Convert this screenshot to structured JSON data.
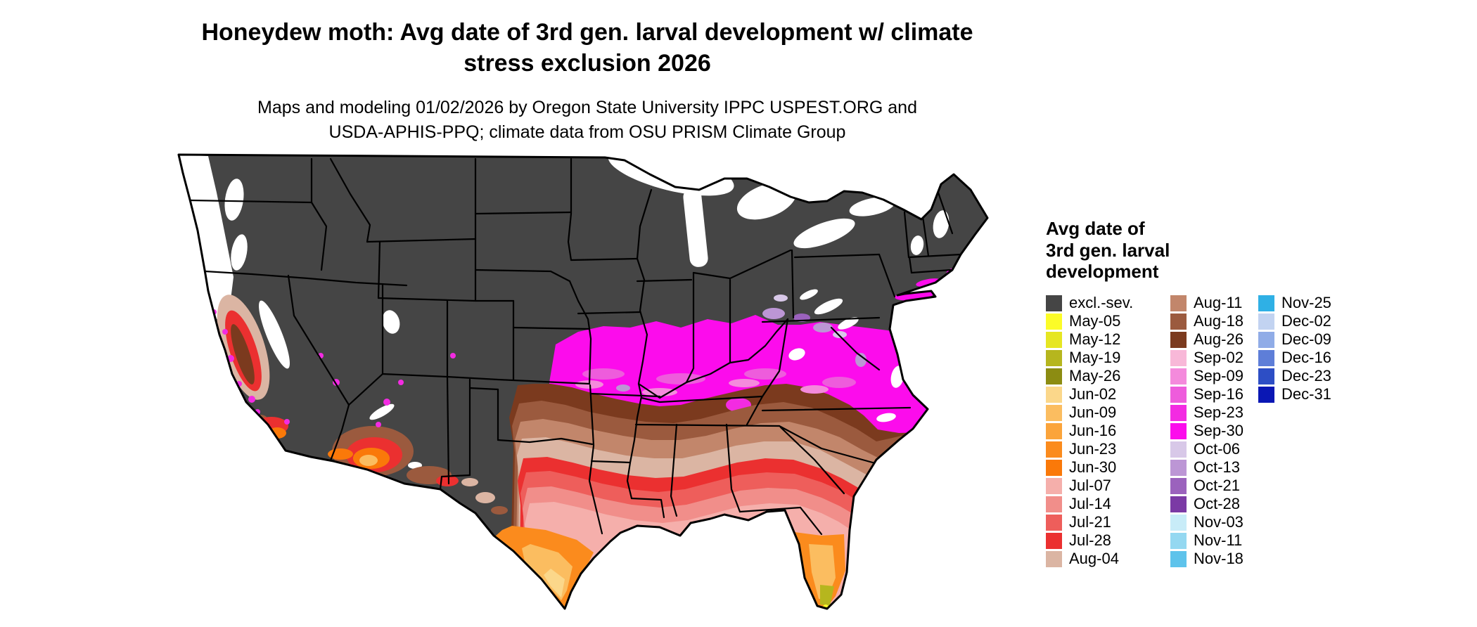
{
  "title": {
    "line1": "Honeydew moth: Avg date of 3rd gen. larval development w/ climate",
    "line2": "stress exclusion 2026"
  },
  "subtitle": {
    "line1": "Maps and modeling 01/02/2026 by Oregon State University IPPC USPEST.ORG and",
    "line2": "USDA-APHIS-PPQ; climate data from OSU PRISM Climate Group"
  },
  "legend": {
    "title_line1": "Avg date of",
    "title_line2": "3rd gen. larval",
    "title_line3": "development",
    "columns": [
      15,
      15,
      6
    ],
    "entries": [
      {
        "label": "excl.-sev.",
        "color": "#454545"
      },
      {
        "label": "May-05",
        "color": "#FCFC28"
      },
      {
        "label": "May-12",
        "color": "#E6E622"
      },
      {
        "label": "May-19",
        "color": "#B6B61E"
      },
      {
        "label": "May-26",
        "color": "#8C8C12"
      },
      {
        "label": "Jun-02",
        "color": "#FBD78A"
      },
      {
        "label": "Jun-09",
        "color": "#FBBD60"
      },
      {
        "label": "Jun-16",
        "color": "#FBA43B"
      },
      {
        "label": "Jun-23",
        "color": "#FB8B1D"
      },
      {
        "label": "Jun-30",
        "color": "#FA7909"
      },
      {
        "label": "Jul-07",
        "color": "#F5AFAB"
      },
      {
        "label": "Jul-14",
        "color": "#F18E8A"
      },
      {
        "label": "Jul-21",
        "color": "#EE5E5B"
      },
      {
        "label": "Jul-28",
        "color": "#EB3030"
      },
      {
        "label": "Aug-04",
        "color": "#DBB5A3"
      },
      {
        "label": "Aug-11",
        "color": "#C2866B"
      },
      {
        "label": "Aug-18",
        "color": "#9B5A3E"
      },
      {
        "label": "Aug-26",
        "color": "#7B3A1E"
      },
      {
        "label": "Sep-02",
        "color": "#F8B8D8"
      },
      {
        "label": "Sep-09",
        "color": "#F48ADC"
      },
      {
        "label": "Sep-16",
        "color": "#EE5CDC"
      },
      {
        "label": "Sep-23",
        "color": "#F32BE2"
      },
      {
        "label": "Sep-30",
        "color": "#FC0CEC"
      },
      {
        "label": "Oct-06",
        "color": "#D8C8E8"
      },
      {
        "label": "Oct-13",
        "color": "#BC96D5"
      },
      {
        "label": "Oct-21",
        "color": "#9B62BD"
      },
      {
        "label": "Oct-28",
        "color": "#7B3AA5"
      },
      {
        "label": "Nov-03",
        "color": "#C8ECF8"
      },
      {
        "label": "Nov-11",
        "color": "#94D8F1"
      },
      {
        "label": "Nov-18",
        "color": "#5EC3EB"
      },
      {
        "label": "Nov-25",
        "color": "#2FB0E5"
      },
      {
        "label": "Dec-02",
        "color": "#C2D3F1"
      },
      {
        "label": "Dec-09",
        "color": "#90ACE7"
      },
      {
        "label": "Dec-16",
        "color": "#5E7ED8"
      },
      {
        "label": "Dec-23",
        "color": "#2D4EC5"
      },
      {
        "label": "Dec-31",
        "color": "#0A17B4"
      }
    ]
  }
}
